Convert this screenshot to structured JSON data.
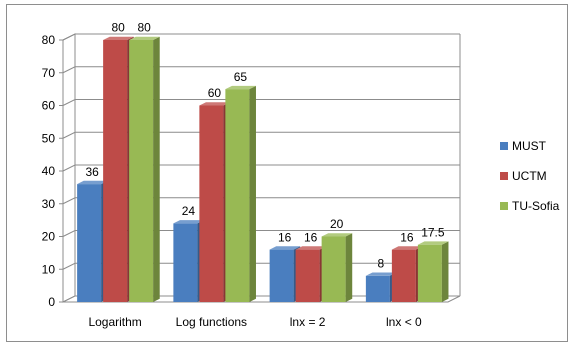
{
  "chart_data": {
    "type": "bar",
    "style": "3d-clustered-column",
    "categories": [
      "Logarithm",
      "Log functions",
      "lnx = 2",
      "lnx < 0"
    ],
    "series": [
      {
        "name": "MUST",
        "color": "#4a7ebf",
        "values": [
          36,
          24,
          16,
          8
        ],
        "labels": [
          "36",
          "24",
          "16",
          "8"
        ]
      },
      {
        "name": "UCTM",
        "color": "#be4b48",
        "values": [
          80,
          60,
          16,
          16
        ],
        "labels": [
          "80",
          "60",
          "16",
          "16"
        ]
      },
      {
        "name": "TU-Sofia",
        "color": "#98b954",
        "values": [
          80,
          65,
          20,
          17.5
        ],
        "labels": [
          "80",
          "65",
          "20",
          "17.5"
        ]
      }
    ],
    "yticks": [
      "0",
      "10",
      "20",
      "30",
      "40",
      "50",
      "60",
      "70",
      "80"
    ],
    "ylim": [
      0,
      80
    ],
    "grid": true,
    "legend": "right",
    "title": "",
    "xlabel": "",
    "ylabel": ""
  }
}
